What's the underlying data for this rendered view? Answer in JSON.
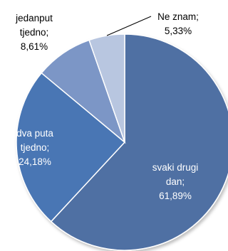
{
  "chart_data": {
    "type": "pie",
    "title": "",
    "legend": "none",
    "start": "top, clockwise",
    "slices": [
      {
        "name": "svaki drugi dan",
        "lines": [
          "svaki drugi",
          "dan;",
          "61,89%"
        ],
        "value": 61.89,
        "color": "#4f6fa3",
        "label_color": "#ffffff"
      },
      {
        "name": "dva puta tjedno",
        "lines": [
          "dva puta",
          "tjedno;",
          "24,18%"
        ],
        "value": 24.18,
        "color": "#4a76b4",
        "label_color": "#ffffff"
      },
      {
        "name": "jedanput tjedno",
        "lines": [
          "jedanput",
          "tjedno;",
          "8,61%"
        ],
        "value": 8.61,
        "color": "#7b96c6",
        "label_color": "#000000"
      },
      {
        "name": "Ne znam",
        "lines": [
          "Ne znam;",
          "5,33%"
        ],
        "value": 5.33,
        "color": "#b8c6e0",
        "label_color": "#000000"
      }
    ]
  }
}
